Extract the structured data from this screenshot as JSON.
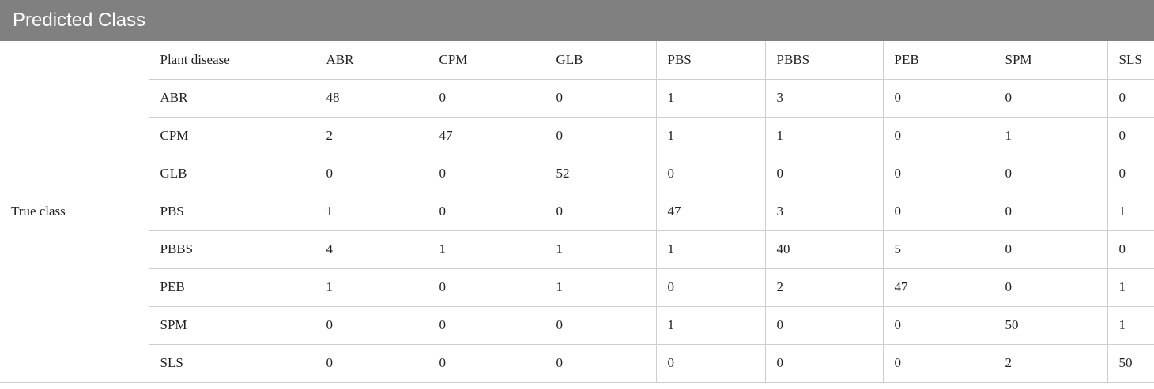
{
  "header": {
    "title": "Predicted Class"
  },
  "table": {
    "row_group": "True class",
    "columns": [
      "Plant disease",
      "ABR",
      "CPM",
      "GLB",
      "PBS",
      "PBBS",
      "PEB",
      "SPM",
      "SLS"
    ],
    "rows": [
      [
        "ABR",
        48,
        0,
        0,
        1,
        3,
        0,
        0,
        0
      ],
      [
        "CPM",
        2,
        47,
        0,
        1,
        1,
        0,
        1,
        0
      ],
      [
        "GLB",
        0,
        0,
        52,
        0,
        0,
        0,
        0,
        0
      ],
      [
        "PBS",
        1,
        0,
        0,
        47,
        3,
        0,
        0,
        1
      ],
      [
        "PBBS",
        4,
        1,
        1,
        1,
        40,
        5,
        0,
        0
      ],
      [
        "PEB",
        1,
        0,
        1,
        0,
        2,
        47,
        0,
        1
      ],
      [
        "SPM",
        0,
        0,
        0,
        1,
        0,
        0,
        50,
        1
      ],
      [
        "SLS",
        0,
        0,
        0,
        0,
        0,
        0,
        2,
        50
      ]
    ]
  }
}
